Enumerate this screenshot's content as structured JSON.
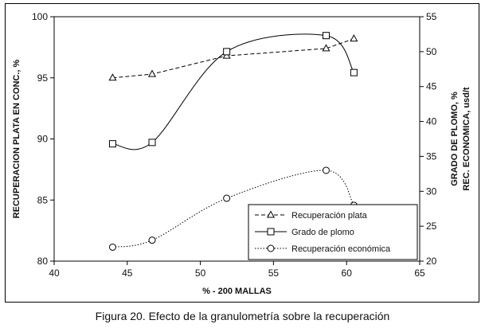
{
  "figure": {
    "caption": "Figura  20. Efecto de la granulometría sobre la recuperación"
  },
  "chart_data": {
    "type": "line",
    "xlabel": "% - 200 MALLAS",
    "ylabel_left": "RECUPERACION PLATA EN CONC., %",
    "ylabel_right_line1": "GRADO DE PLOMO, %",
    "ylabel_right_line2": "REC. ECONOMICA, usd/t",
    "xlim": [
      40,
      65
    ],
    "ylim_left": [
      80,
      100
    ],
    "ylim_right": [
      20,
      55
    ],
    "x_ticks": [
      40,
      45,
      50,
      55,
      60,
      65
    ],
    "y_left_ticks": [
      80,
      85,
      90,
      95,
      100
    ],
    "y_right_ticks": [
      20,
      25,
      30,
      35,
      40,
      45,
      50,
      55
    ],
    "grid": false,
    "legend_position": "bottom-right",
    "series": [
      {
        "name": "Recuperación plata",
        "axis": "left",
        "marker": "triangle",
        "line_style": "dashed",
        "smooth": false,
        "x": [
          44,
          46.7,
          51.8,
          58.6,
          60.5
        ],
        "y": [
          95.0,
          95.3,
          96.8,
          97.4,
          98.2
        ]
      },
      {
        "name": "Grado de plomo",
        "axis": "right",
        "marker": "square",
        "line_style": "solid",
        "smooth": true,
        "x": [
          44,
          46.7,
          51.8,
          58.6,
          60.5
        ],
        "y": [
          36.8,
          37.0,
          50.0,
          52.3,
          47.0
        ]
      },
      {
        "name": "Recuperación económica",
        "axis": "right",
        "marker": "circle",
        "line_style": "dotted",
        "smooth": true,
        "x": [
          44,
          46.7,
          51.8,
          58.6,
          60.5
        ],
        "y": [
          22.0,
          23.0,
          29.0,
          33.0,
          28.0
        ]
      }
    ]
  }
}
